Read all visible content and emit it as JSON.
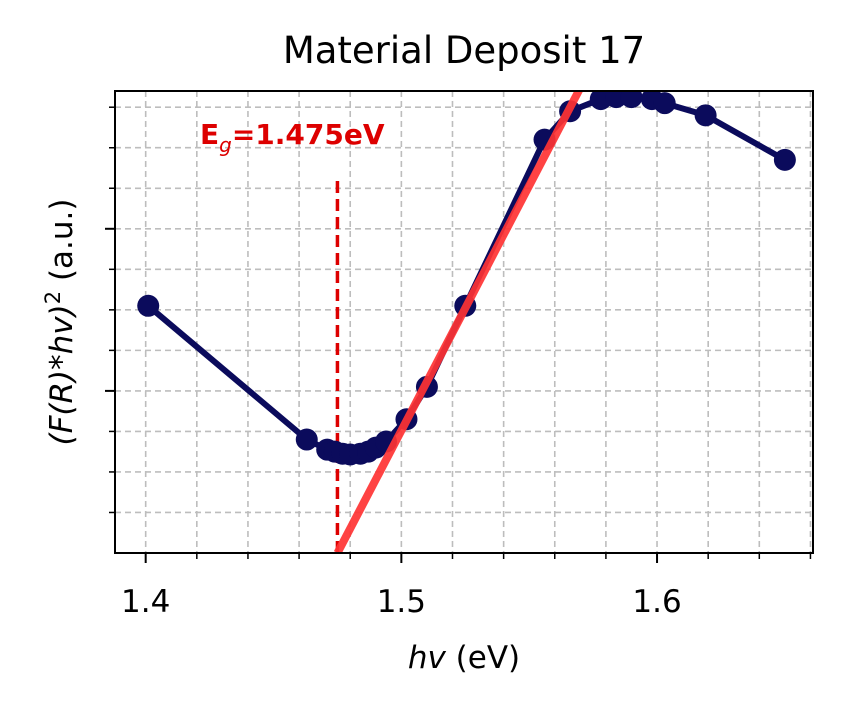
{
  "chart_data": {
    "type": "line",
    "title": "Material Deposit 17",
    "xlabel_italic": "hv",
    "xlabel_rest": " (eV)",
    "ylabel_math": "(F(R)*hv)",
    "ylabel_power": "2",
    "ylabel_rest": " (a.u.)",
    "xlim": [
      1.388,
      1.661
    ],
    "ylim": [
      0.0,
      1.14
    ],
    "x_ticks": [
      1.4,
      1.5,
      1.6
    ],
    "x_tick_labels": [
      "1.4",
      "1.5",
      "1.6"
    ],
    "x_minor_ticks": [
      1.42,
      1.44,
      1.46,
      1.48,
      1.52,
      1.54,
      1.56,
      1.58,
      1.62,
      1.64,
      1.66
    ],
    "y_major_ticks": [
      0.4,
      0.8
    ],
    "y_minor_ticks": [
      0.1,
      0.2,
      0.3,
      0.5,
      0.6,
      0.7,
      0.9,
      1.0,
      1.1
    ],
    "grid": true,
    "series": [
      {
        "color": "#0b0b5c",
        "points": [
          [
            1.401,
            0.61
          ],
          [
            1.463,
            0.28
          ],
          [
            1.471,
            0.255
          ],
          [
            1.474,
            0.25
          ],
          [
            1.477,
            0.245
          ],
          [
            1.48,
            0.243
          ],
          [
            1.484,
            0.245
          ],
          [
            1.487,
            0.25
          ],
          [
            1.49,
            0.26
          ],
          [
            1.494,
            0.275
          ],
          [
            1.502,
            0.33
          ],
          [
            1.51,
            0.41
          ],
          [
            1.525,
            0.61
          ],
          [
            1.556,
            1.02
          ],
          [
            1.566,
            1.09
          ],
          [
            1.578,
            1.12
          ],
          [
            1.584,
            1.125
          ],
          [
            1.59,
            1.125
          ],
          [
            1.598,
            1.12
          ],
          [
            1.603,
            1.11
          ],
          [
            1.619,
            1.08
          ],
          [
            1.65,
            0.97
          ]
        ]
      }
    ],
    "fit_line": {
      "color": "#ff3333",
      "x": [
        1.475,
        1.571
      ],
      "y": [
        0.0,
        1.16
      ]
    },
    "bandgap": {
      "value": 1.475,
      "color": "#dd0000",
      "vline_y": [
        0.0,
        0.93
      ],
      "label_prefix": "E",
      "label_sub": "g",
      "label_suffix": "=1.475eV"
    }
  }
}
